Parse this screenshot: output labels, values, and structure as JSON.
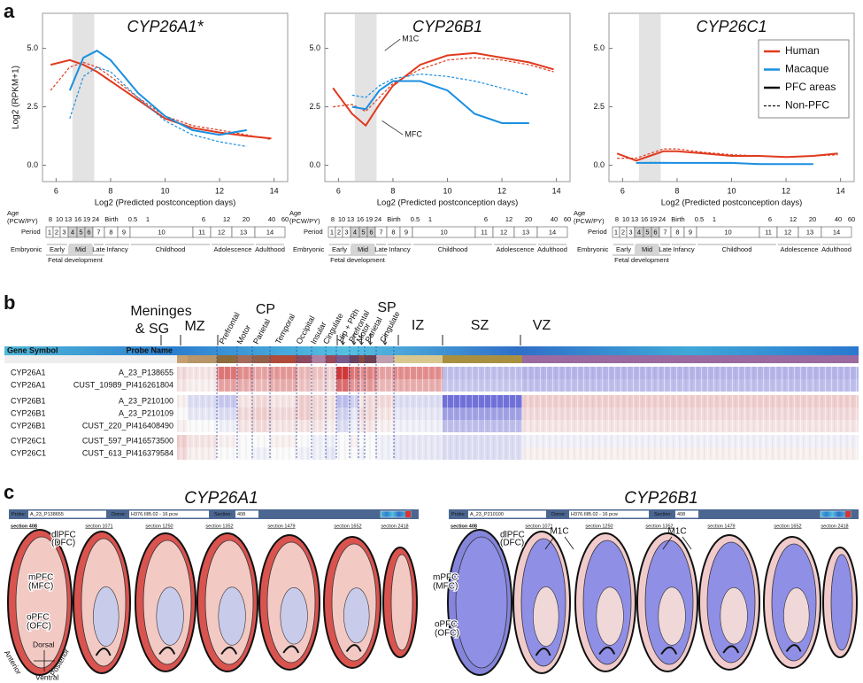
{
  "panel_labels": [
    "a",
    "b",
    "c"
  ],
  "chart_data": [
    {
      "type": "line",
      "title": "CYP26A1*",
      "xlabel": "Log2 (Predicted postconception days)",
      "ylabel": "Log2 (RPKM+1)",
      "x": [
        5.8,
        6.5,
        7,
        7.5,
        8,
        9,
        10,
        11,
        12,
        13,
        13.9
      ],
      "xlim": [
        5.5,
        14.5
      ],
      "xticks": [
        6,
        8,
        10,
        12,
        14
      ],
      "ylim": [
        -0.7,
        6.5
      ],
      "yticks": [
        {
          "value": 0,
          "label": "0.0"
        },
        {
          "value": 2.5,
          "label": "2.5"
        },
        {
          "value": 5,
          "label": "5.0"
        }
      ],
      "highlight": [
        6.6,
        7.4
      ],
      "series": [
        {
          "name": "Human",
          "color": "#e03a1e",
          "dashed": false,
          "values": [
            4.3,
            4.5,
            4.3,
            4.0,
            3.6,
            2.8,
            2.0,
            1.6,
            1.4,
            1.25,
            1.15
          ]
        },
        {
          "name": "Human",
          "color": "#e03a1e",
          "dashed": true,
          "values": [
            3.2,
            4.2,
            4.4,
            4.2,
            3.8,
            2.9,
            2.1,
            1.7,
            1.5,
            1.3,
            1.1
          ]
        },
        {
          "name": "Macaque",
          "color": "#1a8fe0",
          "dashed": false,
          "values": [
            null,
            3.2,
            4.6,
            4.9,
            4.5,
            3.1,
            2.1,
            1.5,
            1.3,
            1.5,
            null
          ]
        },
        {
          "name": "Macaque",
          "color": "#1a8fe0",
          "dashed": true,
          "values": [
            null,
            2.0,
            3.8,
            4.2,
            4.0,
            2.9,
            1.9,
            1.3,
            1.0,
            0.8,
            null
          ]
        }
      ]
    },
    {
      "type": "line",
      "title": "CYP26B1",
      "xlabel": "Log2 (Predicted postconception days)",
      "x": [
        5.8,
        6.5,
        7,
        7.5,
        8,
        9,
        10,
        11,
        12,
        13,
        13.9
      ],
      "xlim": [
        5.5,
        14.5
      ],
      "xticks": [
        6,
        8,
        10,
        12,
        14
      ],
      "ylim": [
        -0.7,
        6.5
      ],
      "yticks": [
        {
          "value": 0,
          "label": "0.0"
        },
        {
          "value": 2.5,
          "label": "2.5"
        },
        {
          "value": 5,
          "label": "5.0"
        }
      ],
      "highlight": [
        6.6,
        7.4
      ],
      "annotations": [
        "M1C",
        "MFC"
      ],
      "series": [
        {
          "name": "Human",
          "color": "#e03a1e",
          "dashed": false,
          "values": [
            3.3,
            2.2,
            1.7,
            2.6,
            3.4,
            4.3,
            4.7,
            4.8,
            4.6,
            4.4,
            4.1
          ]
        },
        {
          "name": "Human",
          "color": "#e03a1e",
          "dashed": true,
          "values": [
            2.5,
            2.6,
            2.3,
            2.9,
            3.5,
            4.1,
            4.5,
            4.6,
            4.5,
            4.3,
            4.0
          ]
        },
        {
          "name": "Macaque",
          "color": "#1a8fe0",
          "dashed": false,
          "values": [
            null,
            2.5,
            2.4,
            3.2,
            3.6,
            3.6,
            3.2,
            2.2,
            1.8,
            1.8,
            null
          ]
        },
        {
          "name": "Macaque",
          "color": "#1a8fe0",
          "dashed": true,
          "values": [
            null,
            3.0,
            2.9,
            3.4,
            3.7,
            3.9,
            3.8,
            3.6,
            3.3,
            3.0,
            null
          ]
        }
      ]
    },
    {
      "type": "line",
      "title": "CYP26C1",
      "xlabel": "Log2 (Predicted postconception days)",
      "x": [
        5.8,
        6.5,
        7,
        7.5,
        8,
        9,
        10,
        11,
        12,
        13,
        13.9
      ],
      "xlim": [
        5.5,
        14.5
      ],
      "xticks": [
        6,
        8,
        10,
        12,
        14
      ],
      "ylim": [
        -0.7,
        6.5
      ],
      "yticks": [
        {
          "value": 0,
          "label": "0.0"
        },
        {
          "value": 2.5,
          "label": "2.5"
        },
        {
          "value": 5,
          "label": "5.0"
        }
      ],
      "highlight": [
        6.6,
        7.4
      ],
      "legend": [
        {
          "label": "Human",
          "color": "#e03a1e",
          "dashed": false
        },
        {
          "label": "Macaque",
          "color": "#1a8fe0",
          "dashed": false
        },
        {
          "label": "PFC areas",
          "color": "#111111",
          "dashed": false
        },
        {
          "label": "Non-PFC",
          "color": "#111111",
          "dashed": true
        }
      ],
      "series": [
        {
          "name": "Human",
          "color": "#e03a1e",
          "dashed": false,
          "values": [
            0.5,
            0.2,
            0.4,
            0.6,
            0.6,
            0.5,
            0.4,
            0.4,
            0.35,
            0.4,
            0.5
          ]
        },
        {
          "name": "Human",
          "color": "#e03a1e",
          "dashed": true,
          "values": [
            0.3,
            0.3,
            0.5,
            0.7,
            0.7,
            0.55,
            0.45,
            0.4,
            0.35,
            0.4,
            0.45
          ]
        },
        {
          "name": "Macaque",
          "color": "#1a8fe0",
          "dashed": false,
          "values": [
            null,
            0.1,
            0.1,
            0.1,
            0.1,
            0.1,
            0.1,
            0.05,
            0.05,
            0.05,
            null
          ]
        },
        {
          "name": "Macaque",
          "color": "#1a8fe0",
          "dashed": true,
          "values": [
            null,
            0.1,
            0.12,
            0.12,
            0.1,
            0.1,
            0.08,
            0.06,
            0.05,
            0.05,
            null
          ]
        }
      ]
    }
  ],
  "timeline": {
    "age_label": [
      "Age",
      "(PCW/PY)"
    ],
    "ages": [
      "8",
      "10",
      "13",
      "16",
      "19",
      "24",
      "Birth",
      "0.5",
      "1",
      "6",
      "12",
      "20",
      "40",
      "60"
    ],
    "period_label": "Period",
    "periods": [
      "1",
      "2",
      "3",
      "4",
      "5",
      "6",
      "7",
      "8",
      "9",
      "10",
      "11",
      "12",
      "13",
      "14"
    ],
    "stage_label": "Embryonic",
    "stages": [
      "Early",
      "Mid",
      "Late",
      "Infancy",
      "Childhood",
      "Adolescence",
      "Adulthood"
    ],
    "fetal_label": "Fetal development"
  },
  "heatmap": {
    "zones": {
      "meninges": [
        "Meninges",
        "& SG"
      ],
      "mz": "MZ",
      "cp": "CP",
      "sp": "SP",
      "iz": "IZ",
      "sz": "SZ",
      "vz": "VZ"
    },
    "cp_areas": [
      "Prefrontal",
      "Motor",
      "Parietal",
      "Temporal",
      "Occipital",
      "Insular",
      "Cingulate"
    ],
    "sp_areas": [
      "Hip + PRh",
      "Prefrontal",
      "Motor",
      "Parietal",
      "Cingulate"
    ],
    "columns": [
      "Gene Symbol",
      "Probe Name"
    ],
    "rows": [
      [
        "CYP26A1",
        "A_23_P138655"
      ],
      [
        "CYP26A1",
        "CUST_10989_PI416261804"
      ],
      [
        "CYP26B1",
        "A_23_P210100"
      ],
      [
        "CYP26B1",
        "A_23_P210109"
      ],
      [
        "CYP26B1",
        "CUST_220_PI416408490"
      ],
      [
        "CYP26C1",
        "CUST_597_PI416573500"
      ],
      [
        "CYP26C1",
        "CUST_613_PI416379584"
      ]
    ],
    "values": [
      [
        0.3,
        0.2,
        1.2,
        1.0,
        0.8,
        0.9,
        0.6,
        0.5,
        0.4,
        1.8,
        1.2,
        1.0,
        1.1,
        0.8,
        1.0,
        -0.6,
        -0.7
      ],
      [
        0.2,
        0.1,
        0.8,
        0.7,
        0.6,
        0.7,
        0.5,
        0.4,
        0.3,
        1.3,
        0.9,
        0.8,
        0.9,
        0.6,
        0.7,
        -0.5,
        -0.6
      ],
      [
        0.1,
        -0.3,
        -0.5,
        0.2,
        0.3,
        0.2,
        0.4,
        0.3,
        0.2,
        -0.6,
        -0.4,
        0.2,
        0.3,
        0.3,
        -0.3,
        -1.4,
        0.4
      ],
      [
        0.0,
        -0.2,
        -0.3,
        0.3,
        0.4,
        0.3,
        0.4,
        0.3,
        0.2,
        -0.4,
        -0.2,
        0.3,
        0.3,
        0.2,
        -0.2,
        -0.9,
        0.3
      ],
      [
        0.1,
        0.0,
        -0.1,
        0.2,
        0.3,
        0.2,
        0.2,
        0.2,
        0.1,
        -0.3,
        -0.1,
        0.2,
        0.2,
        0.1,
        -0.1,
        -0.6,
        0.2
      ],
      [
        0.4,
        0.2,
        0.1,
        0.0,
        0.0,
        0.1,
        0.0,
        -0.1,
        -0.1,
        0.0,
        0.1,
        0.0,
        0.0,
        -0.1,
        -0.2,
        -0.3,
        -0.1
      ],
      [
        0.3,
        0.1,
        0.0,
        0.0,
        -0.1,
        0.0,
        -0.1,
        -0.1,
        -0.2,
        0.0,
        0.0,
        -0.1,
        0.0,
        -0.1,
        -0.2,
        -0.3,
        0.1
      ]
    ]
  },
  "brain_sections": [
    {
      "title": "CYP26A1",
      "probe_label": "Probe:",
      "probe": "A_23_P138655",
      "donor_label": "Donor:",
      "donor": "H376.IIIB.02 - 16 pcw",
      "section_label": "Section:",
      "section": "408",
      "links": [
        "section 408",
        "section 1071",
        "section 1250",
        "section 1352",
        "section 1479",
        "section 1652",
        "section 2418"
      ],
      "regions": [
        "dlPFC",
        "(DFC)",
        "mPFC",
        "(MFC)",
        "oPFC",
        "(OFC)"
      ],
      "axes": [
        "Dorsal",
        "Ventral",
        "Anterior",
        "Posterior"
      ]
    },
    {
      "title": "CYP26B1",
      "probe_label": "Probe:",
      "probe": "A_23_P210100",
      "donor_label": "Donor:",
      "donor": "H376.IIIB.02 - 16 pcw",
      "section_label": "Section:",
      "section": "408",
      "links": [
        "section 408",
        "section 1071",
        "section 1250",
        "section 1352",
        "section 1479",
        "section 1652",
        "section 2418"
      ],
      "regions": [
        "dlPFC",
        "(DFC)",
        "mPFC",
        "(MFC)",
        "oPFC",
        "(OFC)"
      ],
      "annotations": [
        "M1C",
        "M1C"
      ]
    }
  ]
}
